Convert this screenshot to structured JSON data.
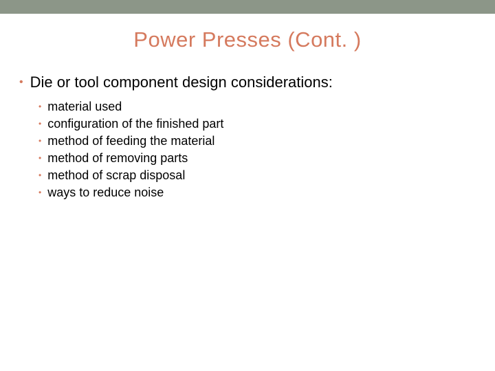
{
  "colors": {
    "top_bar": "#8c9688",
    "bullet": "#d57a5e",
    "title": "#d57a5e",
    "text": "#000000",
    "background": "#ffffff"
  },
  "slide": {
    "title": "Power Presses (Cont. )",
    "main_item": "Die or tool component design considerations:",
    "sub_items": [
      "material used",
      "configuration of the finished part",
      "method of feeding the material",
      "method of removing parts",
      "method of scrap disposal",
      "ways to reduce noise"
    ]
  },
  "typography": {
    "title_fontsize": 31,
    "level1_fontsize": 22,
    "level2_fontsize": 18
  }
}
